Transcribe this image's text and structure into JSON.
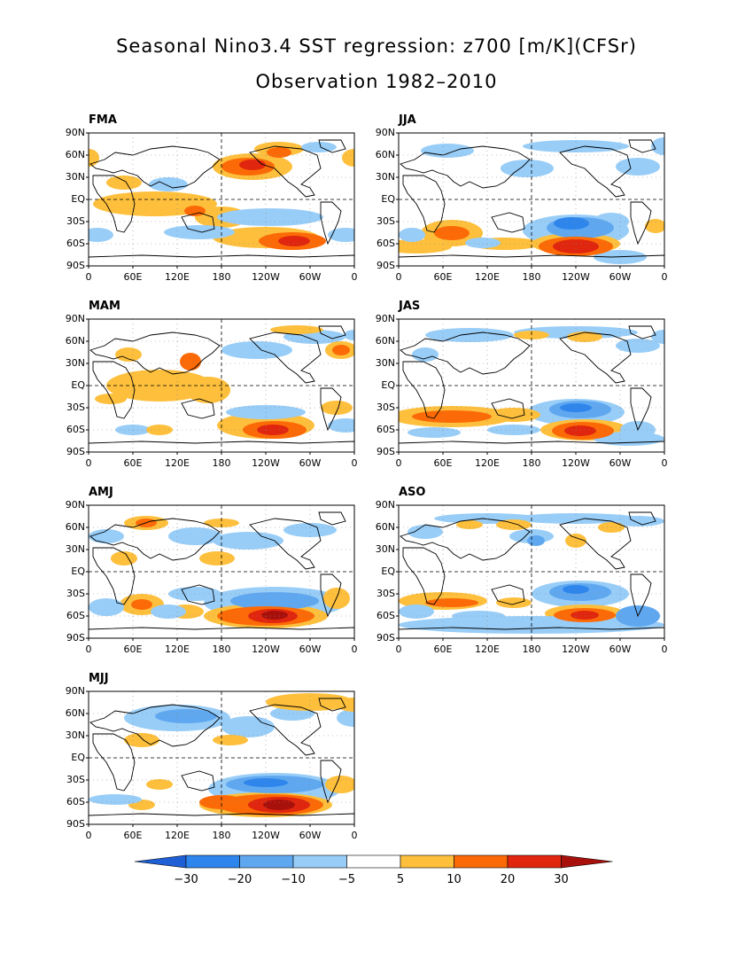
{
  "title_line1": "Seasonal Nino3.4 SST regression: z700 [m/K](CFSr)",
  "title_line2": "Observation 1982–2010",
  "lat_ticks": [
    "90N",
    "60N",
    "30N",
    "EQ",
    "30S",
    "60S",
    "90S"
  ],
  "lon_ticks": [
    "0",
    "60E",
    "120E",
    "180",
    "120W",
    "60W",
    "0"
  ],
  "panels": [
    {
      "id": "FMA",
      "label": "FMA"
    },
    {
      "id": "JJA",
      "label": "JJA"
    },
    {
      "id": "MAM",
      "label": "MAM"
    },
    {
      "id": "JAS",
      "label": "JAS"
    },
    {
      "id": "AMJ",
      "label": "AMJ"
    },
    {
      "id": "ASO",
      "label": "ASO"
    },
    {
      "id": "MJJ",
      "label": "MJJ"
    }
  ],
  "colorbar": {
    "levels": [
      "-30",
      "-20",
      "-10",
      "-5",
      "5",
      "10",
      "20",
      "30"
    ],
    "colors": [
      "#1f5fd6",
      "#2e86ec",
      "#5fa8f0",
      "#98cdf8",
      "#ffffff",
      "#fdbf3c",
      "#fc6a07",
      "#e0260e",
      "#a8100b"
    ]
  },
  "colors": {
    "neg1": "#98cdf8",
    "neg2": "#5fa8f0",
    "neg3": "#2e86ec",
    "neg4": "#1f5fd6",
    "pos1": "#fdbf3c",
    "pos2": "#fc6a07",
    "pos3": "#e0260e",
    "pos4": "#a8100b"
  }
}
